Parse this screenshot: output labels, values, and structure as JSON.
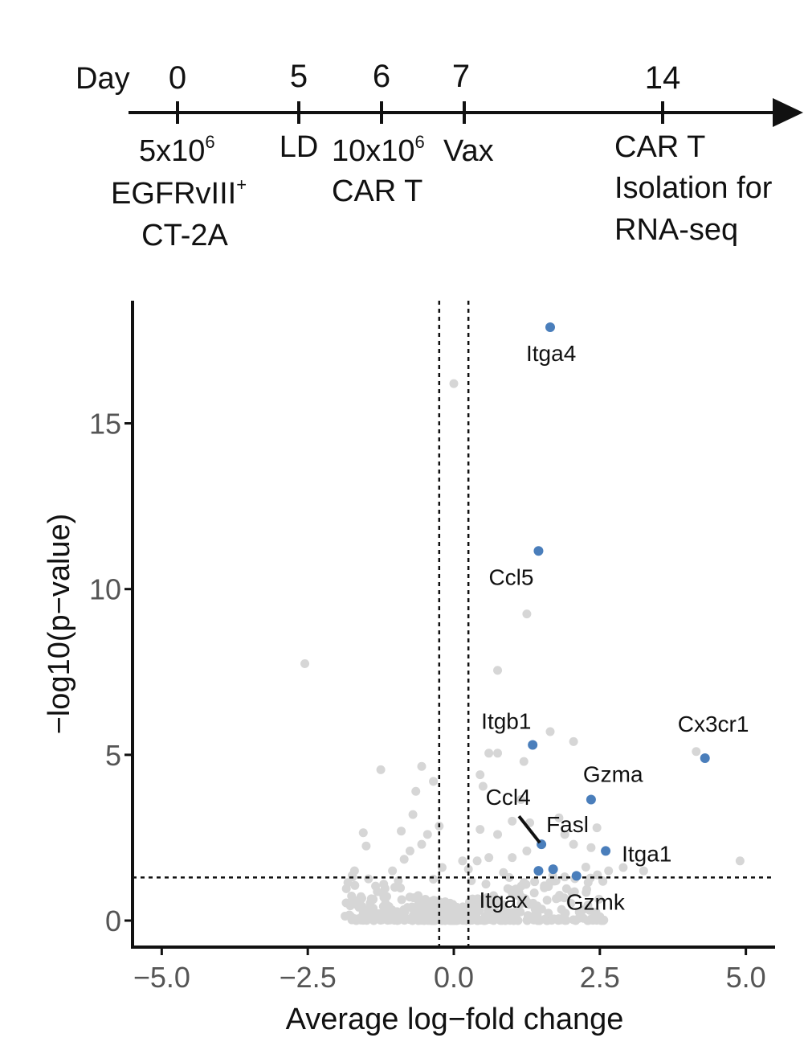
{
  "timeline": {
    "axis_label": "Day",
    "events": [
      {
        "day": "0",
        "lines": [
          "5x10",
          "EGFRvIII",
          "CT-2A"
        ]
      },
      {
        "day": "5",
        "lines": [
          "LD"
        ]
      },
      {
        "day": "6",
        "lines": [
          "10x10",
          "CAR T"
        ]
      },
      {
        "day": "7",
        "lines": [
          "Vax"
        ]
      },
      {
        "day": "14",
        "lines": [
          "CAR T",
          "Isolation for",
          "RNA-seq"
        ]
      }
    ],
    "superscripts": {
      "six": "6",
      "plus": "+"
    }
  },
  "chart_data": {
    "type": "scatter",
    "xlabel": "Average log−fold change",
    "ylabel": "−log10(p−value)",
    "xlim": [
      -5.5,
      5.5
    ],
    "ylim": [
      -0.8,
      18.7
    ],
    "xticks": [
      -5,
      -2.5,
      0,
      2.5,
      5
    ],
    "xtick_labels": [
      "−5.0",
      "−2.5",
      "0.0",
      "2.5",
      "5.0"
    ],
    "yticks": [
      0,
      5,
      10,
      15
    ],
    "ytick_labels": [
      "0",
      "5",
      "10",
      "15"
    ],
    "thresholds": {
      "x": [
        -0.25,
        0.25
      ],
      "y": 1.3
    },
    "colors": {
      "highlight": "#4a7ebb",
      "background": "#d6d6d6"
    },
    "highlighted": [
      {
        "gene": "Itga4",
        "x": 1.65,
        "y": 17.9
      },
      {
        "gene": "Ccl5",
        "x": 1.45,
        "y": 11.15
      },
      {
        "gene": "Itgb1",
        "x": 1.35,
        "y": 5.3
      },
      {
        "gene": "Cx3cr1",
        "x": 4.3,
        "y": 4.9
      },
      {
        "gene": "Gzma",
        "x": 2.35,
        "y": 3.65
      },
      {
        "gene": "Fasl",
        "x": 1.5,
        "y": 2.3
      },
      {
        "gene": "Itga1",
        "x": 2.6,
        "y": 2.1
      },
      {
        "gene": "Itgax",
        "x": 1.45,
        "y": 1.5
      },
      {
        "gene": "Gzmk",
        "x": 2.1,
        "y": 1.35
      },
      {
        "gene": "Ccl4",
        "x": 1.7,
        "y": 1.55
      }
    ],
    "background_points": [
      {
        "x": 0.0,
        "y": 16.2
      },
      {
        "x": -2.55,
        "y": 7.75
      },
      {
        "x": 1.25,
        "y": 9.25
      },
      {
        "x": 0.75,
        "y": 7.55
      },
      {
        "x": 1.65,
        "y": 5.7
      },
      {
        "x": 2.05,
        "y": 5.4
      },
      {
        "x": 4.15,
        "y": 5.1
      },
      {
        "x": 4.9,
        "y": 1.8
      },
      {
        "x": 0.6,
        "y": 5.05
      },
      {
        "x": 0.75,
        "y": 5.05
      },
      {
        "x": 1.2,
        "y": 4.8
      },
      {
        "x": 0.45,
        "y": 4.4
      },
      {
        "x": 0.5,
        "y": 4.05
      },
      {
        "x": 1.15,
        "y": 3.65
      },
      {
        "x": -1.25,
        "y": 4.55
      },
      {
        "x": -0.55,
        "y": 4.65
      },
      {
        "x": -0.35,
        "y": 4.2
      },
      {
        "x": -0.65,
        "y": 3.9
      },
      {
        "x": -0.7,
        "y": 3.2
      },
      {
        "x": -0.9,
        "y": 2.7
      },
      {
        "x": -0.25,
        "y": 2.85
      },
      {
        "x": -1.55,
        "y": 2.65
      },
      {
        "x": -1.5,
        "y": 2.25
      },
      {
        "x": -1.7,
        "y": 1.5
      },
      {
        "x": 0.45,
        "y": 2.75
      },
      {
        "x": 0.75,
        "y": 2.6
      },
      {
        "x": 1.0,
        "y": 3.0
      },
      {
        "x": 1.3,
        "y": 2.95
      },
      {
        "x": 1.8,
        "y": 3.1
      },
      {
        "x": 1.9,
        "y": 2.6
      },
      {
        "x": 2.45,
        "y": 2.8
      },
      {
        "x": 2.35,
        "y": 2.2
      },
      {
        "x": 2.05,
        "y": 2.3
      },
      {
        "x": 1.25,
        "y": 2.1
      },
      {
        "x": 1.0,
        "y": 1.9
      },
      {
        "x": 0.6,
        "y": 1.9
      },
      {
        "x": 0.4,
        "y": 1.8
      },
      {
        "x": 2.9,
        "y": 1.6
      },
      {
        "x": 3.25,
        "y": 1.5
      },
      {
        "x": -0.55,
        "y": 2.3
      },
      {
        "x": -0.75,
        "y": 2.1
      },
      {
        "x": -0.45,
        "y": 2.6
      },
      {
        "x": -0.85,
        "y": 1.85
      },
      {
        "x": -1.05,
        "y": 1.5
      },
      {
        "x": 0.15,
        "y": 1.8
      },
      {
        "x": 0.25,
        "y": 1.55
      },
      {
        "x": -0.2,
        "y": 1.6
      },
      {
        "x": 0.85,
        "y": 1.45
      },
      {
        "x": 1.75,
        "y": 1.2
      },
      {
        "x": 2.3,
        "y": 1.15
      },
      {
        "x": 2.55,
        "y": 1.2
      },
      {
        "x": 2.65,
        "y": 1.5
      },
      {
        "x": 0.95,
        "y": 1.3
      },
      {
        "x": -1.2,
        "y": 1.1
      },
      {
        "x": -0.95,
        "y": 1.2
      },
      {
        "x": 0.55,
        "y": 1.1
      },
      {
        "x": 1.2,
        "y": 1.15
      },
      {
        "x": 1.55,
        "y": 1.05
      },
      {
        "x": -0.35,
        "y": 1.25
      },
      {
        "x": 0.3,
        "y": 1.2
      }
    ]
  }
}
